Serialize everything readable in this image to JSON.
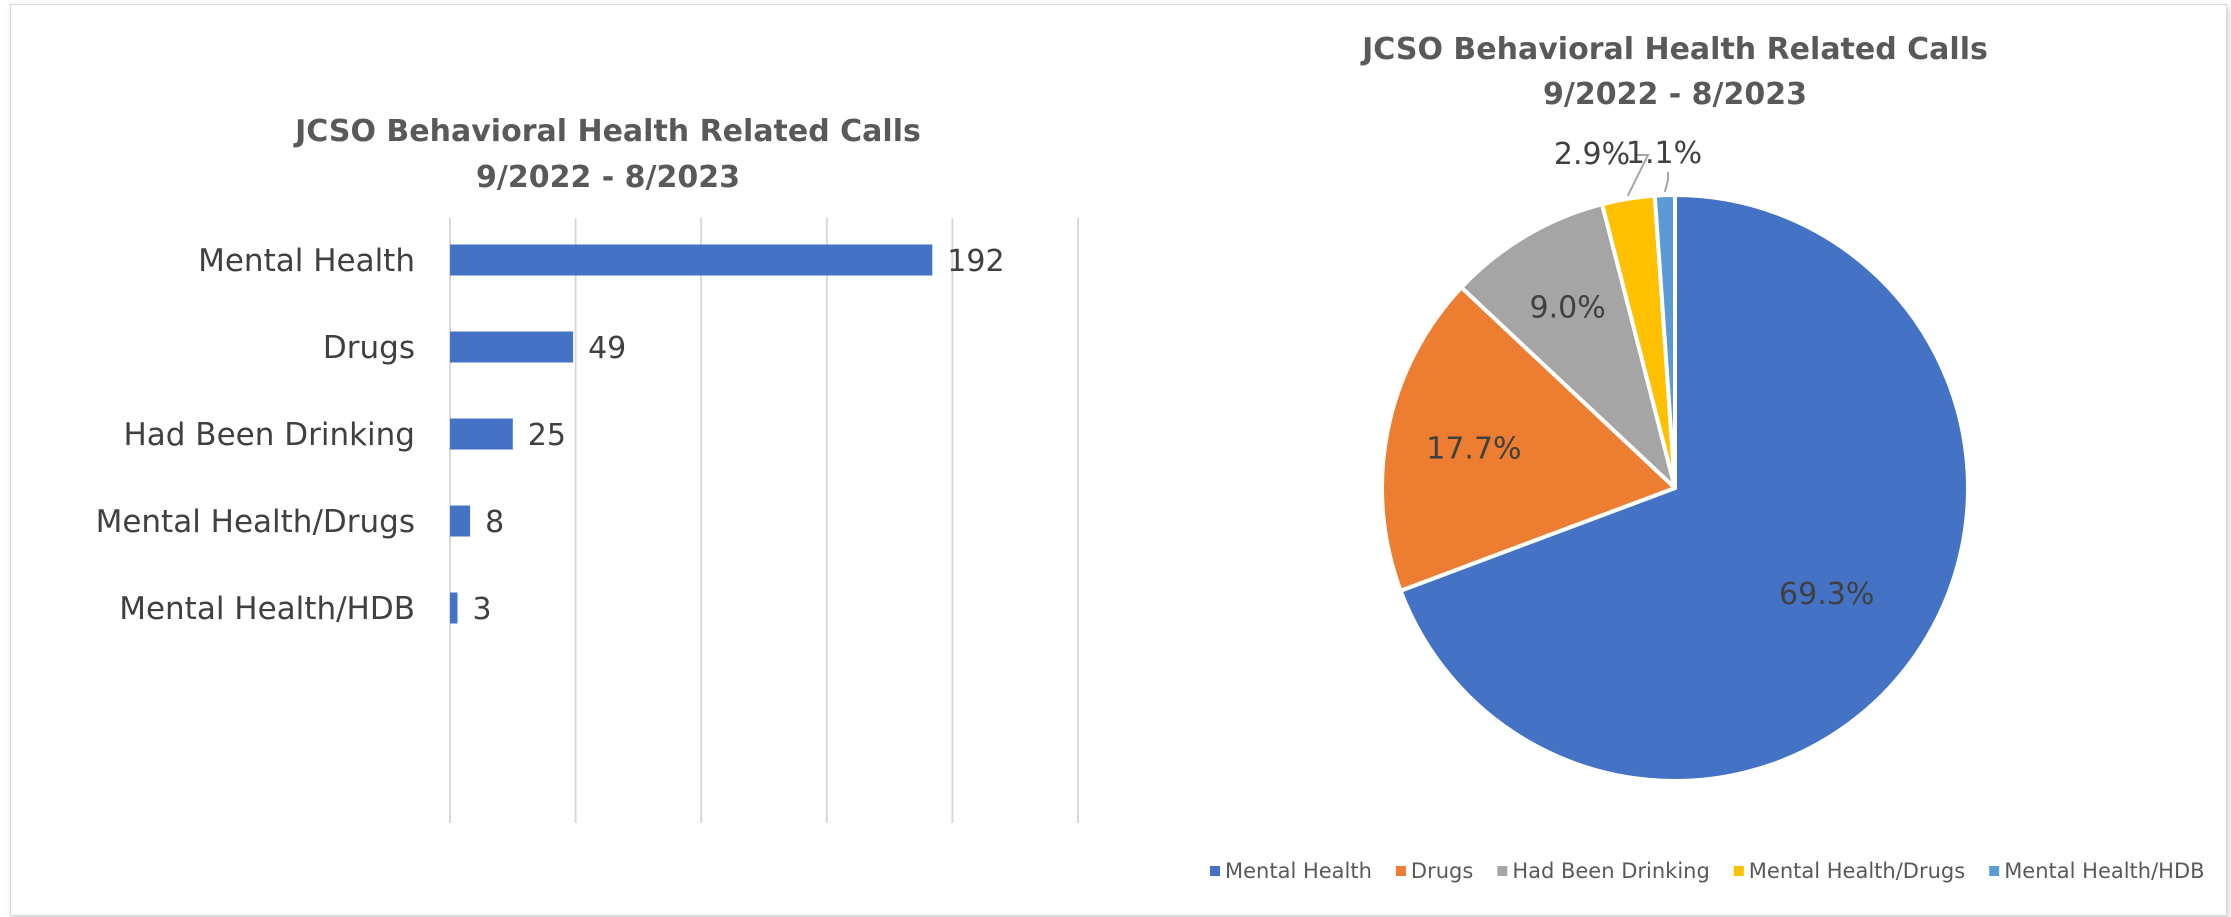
{
  "chart_data": [
    {
      "type": "bar",
      "orientation": "horizontal",
      "title_lines": [
        "JCSO Behavioral Health Related Calls",
        "9/2022 - 8/2023"
      ],
      "categories": [
        "Mental Health",
        "Drugs",
        "Had Been Drinking",
        "Mental Health/Drugs",
        "Mental Health/HDB"
      ],
      "values": [
        192,
        49,
        25,
        8,
        3
      ],
      "xlim": [
        0,
        250
      ],
      "grid": true,
      "color": "#4472C4"
    },
    {
      "type": "pie",
      "title_lines": [
        "JCSO Behavioral Health Related Calls",
        "9/2022 - 8/2023"
      ],
      "labels": [
        "Mental Health",
        "Drugs",
        "Had Been Drinking",
        "Mental Health/Drugs",
        "Mental Health/HDB"
      ],
      "percentages": [
        69.3,
        17.7,
        9.0,
        2.9,
        1.1
      ],
      "percent_labels": [
        "69.3%",
        "17.7%",
        "9.0%",
        "2.9%",
        "1.1%"
      ],
      "colors": [
        "#4472C4",
        "#ED7D31",
        "#A5A5A5",
        "#FFC000",
        "#5B9BD5"
      ],
      "legend_position": "bottom"
    }
  ]
}
